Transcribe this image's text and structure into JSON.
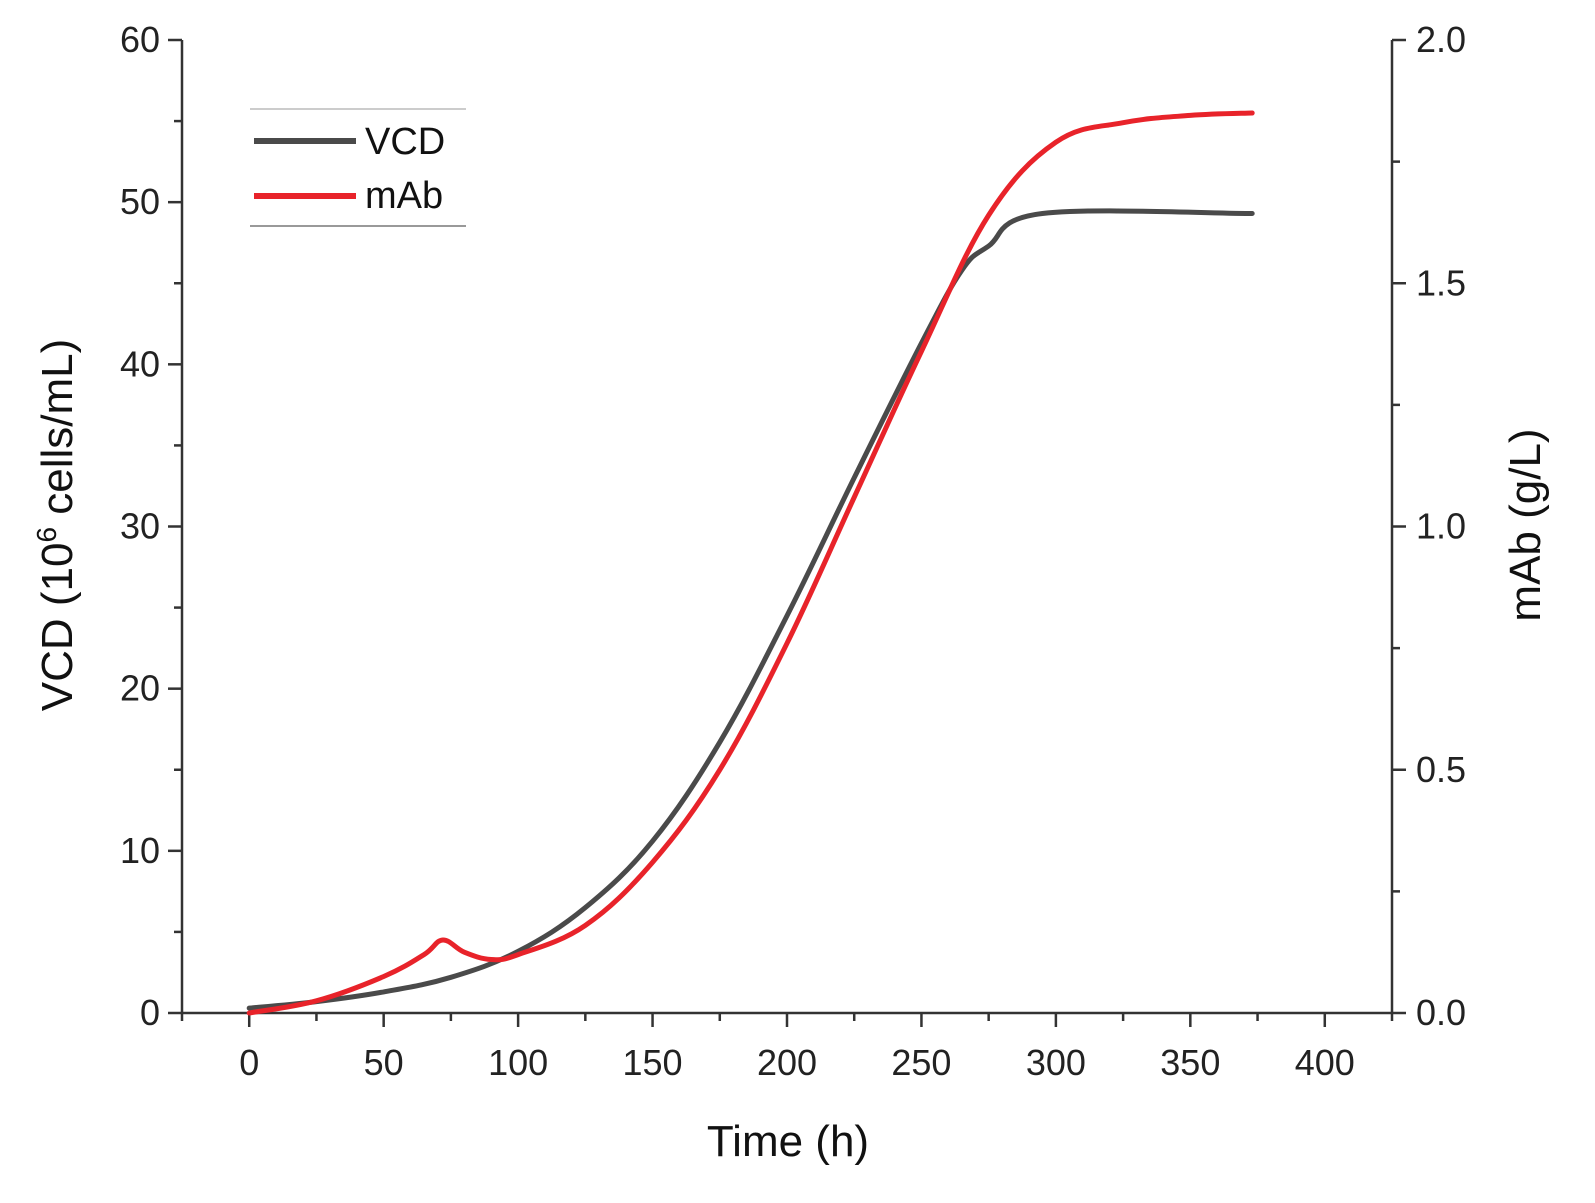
{
  "chart_data": {
    "type": "line",
    "xlabel": "Time (h)",
    "ylabel_left": {
      "base": "VCD (10",
      "sup": "6",
      "rest": " cells/mL)"
    },
    "ylabel_right": "mAb (g/L)",
    "xlim": [
      -25,
      425
    ],
    "ylim_left": [
      0,
      60
    ],
    "ylim_right": [
      0.0,
      2.0
    ],
    "x_ticks": [
      0,
      50,
      100,
      150,
      200,
      250,
      300,
      350,
      400
    ],
    "x_tick_labels": [
      "0",
      "50",
      "100",
      "150",
      "200",
      "250",
      "300",
      "350",
      "400"
    ],
    "y_left_ticks": [
      0,
      10,
      20,
      30,
      40,
      50,
      60
    ],
    "y_left_tick_labels": [
      "0",
      "10",
      "20",
      "30",
      "40",
      "50",
      "60"
    ],
    "y_right_ticks": [
      0.0,
      0.5,
      1.0,
      1.5,
      2.0
    ],
    "y_right_tick_labels": [
      "0.0",
      "0.5",
      "1.0",
      "1.5",
      "2.0"
    ],
    "legend": {
      "placement": "top-left"
    },
    "series": [
      {
        "name": "VCD",
        "axis": "left",
        "color": "#4a4a4a",
        "x": [
          0,
          25,
          50,
          75,
          100,
          125,
          150,
          175,
          200,
          225,
          250,
          265,
          275,
          295,
          373
        ],
        "values": [
          0.3,
          0.7,
          1.3,
          2.2,
          3.8,
          6.5,
          10.6,
          16.7,
          24.5,
          33.0,
          41.3,
          45.8,
          47.3,
          49.3,
          49.3
        ]
      },
      {
        "name": "mAb",
        "axis": "right",
        "color": "#e8232a",
        "x": [
          0,
          25,
          50,
          65,
          72,
          80,
          90,
          100,
          125,
          150,
          175,
          200,
          225,
          250,
          275,
          300,
          325,
          350,
          373
        ],
        "values": [
          0.0,
          0.025,
          0.075,
          0.12,
          0.15,
          0.125,
          0.11,
          0.12,
          0.18,
          0.31,
          0.5,
          0.76,
          1.06,
          1.36,
          1.64,
          1.79,
          1.83,
          1.845,
          1.85
        ]
      }
    ]
  }
}
